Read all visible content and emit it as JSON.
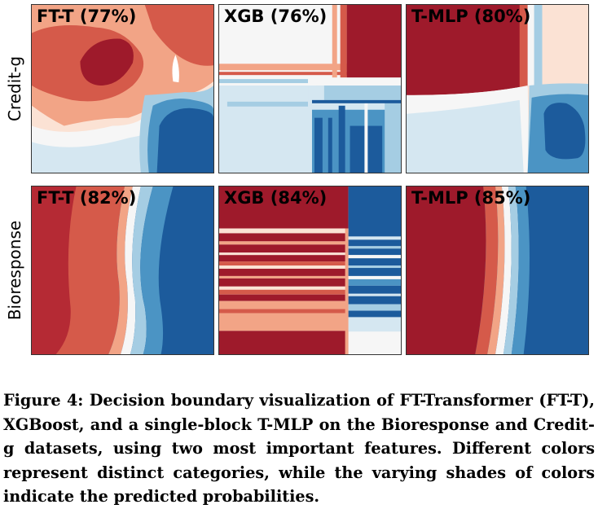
{
  "rows": [
    {
      "label": "Credit-g",
      "panels": [
        {
          "title": "FT-T (77%)"
        },
        {
          "title": "XGB (76%)"
        },
        {
          "title": "T-MLP (80%)"
        }
      ]
    },
    {
      "label": "Bioresponse",
      "panels": [
        {
          "title": "FT-T (82%)"
        },
        {
          "title": "XGB (84%)"
        },
        {
          "title": "T-MLP (85%)"
        }
      ]
    }
  ],
  "caption": "Figure 4: Decision boundary visualization of FT-Transformer (FT-T), XGBoost, and a single-block T-MLP on the Bioresponse and Credit-g datasets, using two most important features. Different colors represent distinct categories, while the varying shades of colors indicate the predicted probabilities.",
  "colors": {
    "dark_red": "#9e1a2b",
    "red": "#d55a4a",
    "salmon": "#f2a486",
    "light_salmon": "#fbe2d4",
    "white": "#f6f6f6",
    "pale_blue": "#d5e7f1",
    "light_blue": "#a5cde3",
    "blue": "#4b94c4",
    "dark_blue": "#1c5b9c"
  }
}
